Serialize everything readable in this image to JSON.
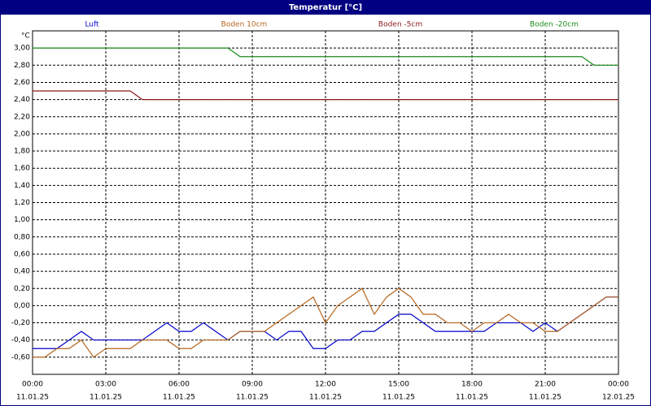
{
  "chart_data": {
    "type": "line",
    "title": "Temperatur [°C]",
    "y_unit": "°C",
    "x": [
      0,
      0.5,
      1,
      1.5,
      2,
      2.5,
      3,
      3.5,
      4,
      4.5,
      5,
      5.5,
      6,
      6.5,
      7,
      7.5,
      8,
      8.5,
      9,
      9.5,
      10,
      10.5,
      11,
      11.5,
      12,
      12.5,
      13,
      13.5,
      14,
      14.5,
      15,
      15.5,
      16,
      16.5,
      17,
      17.5,
      18,
      18.5,
      19,
      19.5,
      20,
      20.5,
      21,
      21.5,
      22,
      22.5,
      23,
      23.5,
      24
    ],
    "series": [
      {
        "name": "Luft",
        "color": "#0000cc",
        "values": [
          -0.5,
          -0.5,
          -0.5,
          -0.4,
          -0.3,
          -0.4,
          -0.4,
          -0.4,
          -0.4,
          -0.4,
          -0.3,
          -0.2,
          -0.3,
          -0.3,
          -0.2,
          -0.3,
          -0.4,
          -0.3,
          -0.3,
          -0.3,
          -0.4,
          -0.3,
          -0.3,
          -0.5,
          -0.5,
          -0.4,
          -0.4,
          -0.3,
          -0.3,
          -0.2,
          -0.1,
          -0.1,
          -0.2,
          -0.3,
          -0.3,
          -0.3,
          -0.3,
          -0.3,
          -0.2,
          -0.2,
          -0.2,
          -0.3,
          -0.2,
          -0.3,
          -0.2,
          -0.1,
          0,
          0.1,
          0.1
        ]
      },
      {
        "name": "Boden 10cm",
        "color": "#b5651d",
        "values": [
          -0.6,
          -0.6,
          -0.5,
          -0.5,
          -0.4,
          -0.6,
          -0.5,
          -0.5,
          -0.5,
          -0.4,
          -0.4,
          -0.4,
          -0.5,
          -0.5,
          -0.4,
          -0.4,
          -0.4,
          -0.3,
          -0.3,
          -0.3,
          -0.2,
          -0.1,
          0,
          0.1,
          -0.2,
          0,
          0.1,
          0.2,
          -0.1,
          0.1,
          0.2,
          0.1,
          -0.1,
          -0.1,
          -0.2,
          -0.2,
          -0.3,
          -0.2,
          -0.2,
          -0.1,
          -0.2,
          -0.2,
          -0.3,
          -0.3,
          -0.2,
          -0.1,
          0,
          0.1,
          0.1
        ]
      },
      {
        "name": "Boden -5cm",
        "color": "#8b1a1a",
        "values": [
          2.5,
          2.5,
          2.5,
          2.5,
          2.5,
          2.5,
          2.5,
          2.5,
          2.5,
          2.4,
          2.4,
          2.4,
          2.4,
          2.4,
          2.4,
          2.4,
          2.4,
          2.4,
          2.4,
          2.4,
          2.4,
          2.4,
          2.4,
          2.4,
          2.4,
          2.4,
          2.4,
          2.4,
          2.4,
          2.4,
          2.4,
          2.4,
          2.4,
          2.4,
          2.4,
          2.4,
          2.4,
          2.4,
          2.4,
          2.4,
          2.4,
          2.4,
          2.4,
          2.4,
          2.4,
          2.4,
          2.4,
          2.4,
          2.4
        ]
      },
      {
        "name": "Boden -20cm",
        "color": "#1a8c1a",
        "values": [
          3,
          3,
          3,
          3,
          3,
          3,
          3,
          3,
          3,
          3,
          3,
          3,
          3,
          3,
          3,
          3,
          3,
          2.9,
          2.9,
          2.9,
          2.9,
          2.9,
          2.9,
          2.9,
          2.9,
          2.9,
          2.9,
          2.9,
          2.9,
          2.9,
          2.9,
          2.9,
          2.9,
          2.9,
          2.9,
          2.9,
          2.9,
          2.9,
          2.9,
          2.9,
          2.9,
          2.9,
          2.9,
          2.9,
          2.9,
          2.9,
          2.8,
          2.8,
          2.8
        ]
      }
    ],
    "xlim": [
      0,
      24
    ],
    "xticks": [
      {
        "value": 0,
        "label": "00:00",
        "date": "11.01.25"
      },
      {
        "value": 3,
        "label": "03:00",
        "date": "11.01.25"
      },
      {
        "value": 6,
        "label": "06:00",
        "date": "11.01.25"
      },
      {
        "value": 9,
        "label": "09:00",
        "date": "11.01.25"
      },
      {
        "value": 12,
        "label": "12:00",
        "date": "11.01.25"
      },
      {
        "value": 15,
        "label": "15:00",
        "date": "11.01.25"
      },
      {
        "value": 18,
        "label": "18:00",
        "date": "11.01.25"
      },
      {
        "value": 21,
        "label": "21:00",
        "date": "11.01.25"
      },
      {
        "value": 24,
        "label": "00:00",
        "date": "12.01.25"
      }
    ],
    "ylim": [
      -0.8,
      3.2
    ],
    "yticks": [
      {
        "value": -0.6,
        "label": "-0,60"
      },
      {
        "value": -0.4,
        "label": "-0,40"
      },
      {
        "value": -0.2,
        "label": "-0,20"
      },
      {
        "value": 0,
        "label": "0,00"
      },
      {
        "value": 0.2,
        "label": "0,20"
      },
      {
        "value": 0.4,
        "label": "0,40"
      },
      {
        "value": 0.6,
        "label": "0,60"
      },
      {
        "value": 0.8,
        "label": "0,80"
      },
      {
        "value": 1,
        "label": "1,00"
      },
      {
        "value": 1.2,
        "label": "1,20"
      },
      {
        "value": 1.4,
        "label": "1,40"
      },
      {
        "value": 1.6,
        "label": "1,60"
      },
      {
        "value": 1.8,
        "label": "1,80"
      },
      {
        "value": 2,
        "label": "2,00"
      },
      {
        "value": 2.2,
        "label": "2,20"
      },
      {
        "value": 2.4,
        "label": "2,40"
      },
      {
        "value": 2.6,
        "label": "2,60"
      },
      {
        "value": 2.8,
        "label": "2,80"
      },
      {
        "value": 3,
        "label": "3,00"
      }
    ],
    "grid": true
  }
}
